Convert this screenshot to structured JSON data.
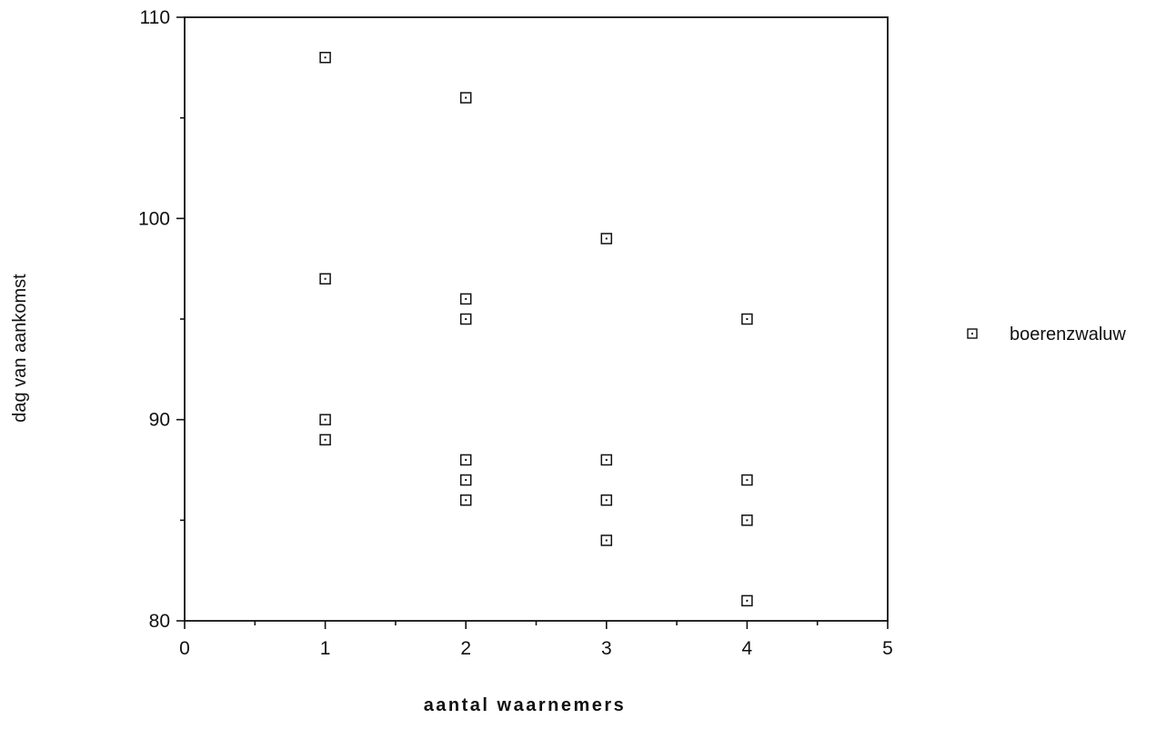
{
  "chart_data": {
    "type": "scatter",
    "title": "",
    "xlabel": "aantal waarnemers",
    "ylabel": "dag van aankomst",
    "xlim": [
      0,
      5
    ],
    "ylim": [
      80,
      110
    ],
    "x_ticks": [
      0,
      1,
      2,
      3,
      4,
      5
    ],
    "y_ticks": [
      80,
      90,
      100,
      110
    ],
    "x_minor_step": 0.5,
    "y_minor_step": 5,
    "grid": false,
    "legend_position": "right",
    "series": [
      {
        "name": "boerenzwaluw",
        "marker": "square-dot",
        "color": "#111111",
        "points": [
          {
            "x": 1,
            "y": 108
          },
          {
            "x": 1,
            "y": 97
          },
          {
            "x": 1,
            "y": 90
          },
          {
            "x": 1,
            "y": 89
          },
          {
            "x": 2,
            "y": 106
          },
          {
            "x": 2,
            "y": 96
          },
          {
            "x": 2,
            "y": 95
          },
          {
            "x": 2,
            "y": 88
          },
          {
            "x": 2,
            "y": 87
          },
          {
            "x": 2,
            "y": 86
          },
          {
            "x": 3,
            "y": 99
          },
          {
            "x": 3,
            "y": 88
          },
          {
            "x": 3,
            "y": 86
          },
          {
            "x": 3,
            "y": 84
          },
          {
            "x": 4,
            "y": 95
          },
          {
            "x": 4,
            "y": 87
          },
          {
            "x": 4,
            "y": 85
          },
          {
            "x": 4,
            "y": 81
          }
        ]
      }
    ]
  }
}
